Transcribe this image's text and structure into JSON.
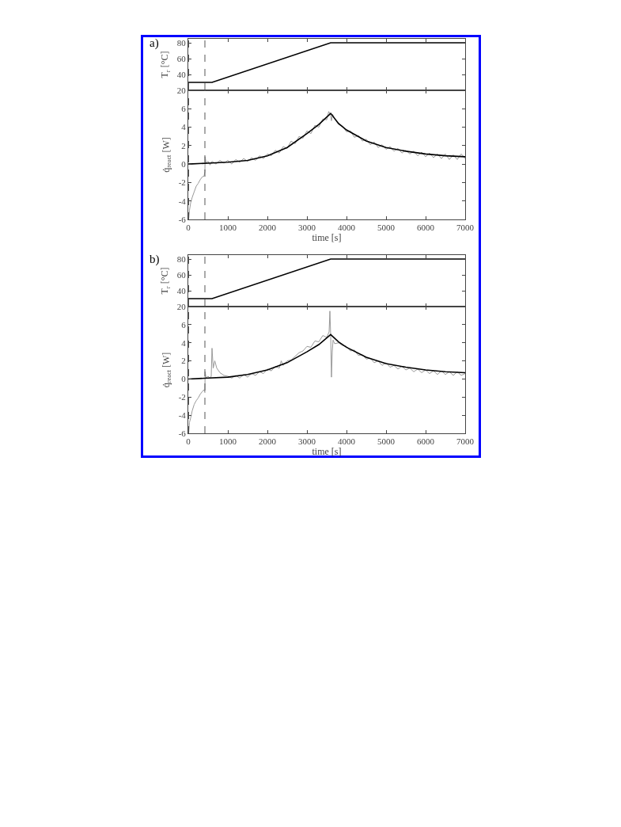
{
  "chart_data": [
    {
      "type": "line",
      "ylabel": "T$_{r}$ [°C]",
      "annotations": [
        "a)"
      ],
      "xlim": [
        0,
        7000
      ],
      "xticks": [
        0,
        1000,
        2000,
        3000,
        4000,
        5000,
        6000,
        7000
      ],
      "ylim": [
        20,
        85
      ],
      "yticks": [
        20,
        40,
        60,
        80
      ],
      "tick_labels": "y",
      "ref_lines": [
        {
          "axis": "x",
          "value": 10,
          "color": "#555555",
          "line_style": "dashed"
        },
        {
          "axis": "x",
          "value": 420,
          "color": "#555555",
          "line_style": "dashed"
        }
      ],
      "series": [
        {
          "color": "#000000",
          "x": [
            0,
            600,
            3600,
            7000
          ],
          "values": [
            30,
            30,
            80,
            80
          ]
        }
      ]
    },
    {
      "type": "line",
      "xlabel": "time [s]",
      "ylabel": "q̇$_{react}$ [W]",
      "xlim": [
        0,
        7000
      ],
      "xticks": [
        0,
        1000,
        2000,
        3000,
        4000,
        5000,
        6000,
        7000
      ],
      "ylim": [
        -6,
        8
      ],
      "yticks": [
        -6,
        -4,
        -2,
        0,
        2,
        4,
        6
      ],
      "ref_lines": [
        {
          "axis": "x",
          "value": 10,
          "color": "#555555",
          "line_style": "dashed"
        },
        {
          "axis": "x",
          "value": 420,
          "color": "#555555",
          "line_style": "dashed"
        }
      ],
      "series": [
        {
          "color": "#999999",
          "x": [
            10,
            30,
            60,
            100,
            150,
            200,
            250,
            300,
            350,
            400,
            420,
            425,
            450,
            500,
            550,
            600,
            700,
            800,
            900,
            1000,
            1100,
            1200,
            1300,
            1400,
            1500,
            1600,
            1700,
            1800,
            1900,
            2000,
            2100,
            2200,
            2300,
            2400,
            2500,
            2600,
            2700,
            2800,
            2900,
            3000,
            3100,
            3200,
            3300,
            3400,
            3500,
            3550,
            3600,
            3620,
            3650,
            3700,
            3800,
            3900,
            4000,
            4100,
            4200,
            4300,
            4400,
            4500,
            4600,
            4700,
            4800,
            4900,
            5000,
            5100,
            5200,
            5300,
            5400,
            5500,
            5600,
            5700,
            5800,
            5900,
            6000,
            6100,
            6200,
            6300,
            6400,
            6500,
            6600,
            6700,
            6800,
            6900,
            7000
          ],
          "values": [
            -6,
            -5.0,
            -4.2,
            -3.6,
            -3.0,
            -2.4,
            -2.1,
            -1.7,
            -1.4,
            -1.3,
            -0.8,
            0.8,
            0.1,
            0.3,
            -0.1,
            0.3,
            0.0,
            0.4,
            0.1,
            0.4,
            0.0,
            0.5,
            0.2,
            0.6,
            0.3,
            0.7,
            0.4,
            0.9,
            0.6,
            1.1,
            0.9,
            1.5,
            1.2,
            1.9,
            1.7,
            2.5,
            2.2,
            3.0,
            2.8,
            3.6,
            3.3,
            4.2,
            4.0,
            4.9,
            4.8,
            5.7,
            5.3,
            4.7,
            5.4,
            4.9,
            4.3,
            4.1,
            3.5,
            3.6,
            2.9,
            3.1,
            2.5,
            2.7,
            2.1,
            2.4,
            1.8,
            2.1,
            1.6,
            1.9,
            1.4,
            1.7,
            1.2,
            1.5,
            1.1,
            1.4,
            0.9,
            1.3,
            0.8,
            1.2,
            0.7,
            1.1,
            0.6,
            1.1,
            0.5,
            1.0,
            0.5,
            1.1,
            0.6
          ]
        },
        {
          "color": "#000000",
          "x": [
            0,
            500,
            1000,
            1500,
            2000,
            2500,
            3000,
            3300,
            3600,
            3800,
            4000,
            4500,
            5000,
            5500,
            6000,
            6500,
            7000
          ],
          "values": [
            0,
            0.1,
            0.2,
            0.4,
            0.9,
            1.8,
            3.3,
            4.3,
            5.5,
            4.4,
            3.7,
            2.5,
            1.8,
            1.4,
            1.1,
            0.9,
            0.8
          ]
        }
      ]
    },
    {
      "type": "line",
      "ylabel": "T$_{r}$ [°C]",
      "annotations": [
        "b)"
      ],
      "xlim": [
        0,
        7000
      ],
      "xticks": [
        0,
        1000,
        2000,
        3000,
        4000,
        5000,
        6000,
        7000
      ],
      "ylim": [
        20,
        85
      ],
      "yticks": [
        20,
        40,
        60,
        80
      ],
      "tick_labels": "y",
      "ref_lines": [
        {
          "axis": "x",
          "value": 10,
          "color": "#555555",
          "line_style": "dashed"
        },
        {
          "axis": "x",
          "value": 420,
          "color": "#555555",
          "line_style": "dashed"
        }
      ],
      "series": [
        {
          "color": "#000000",
          "x": [
            0,
            600,
            3600,
            7000
          ],
          "values": [
            30,
            30,
            80,
            80
          ]
        }
      ]
    },
    {
      "type": "line",
      "xlabel": "time [s]",
      "ylabel": "q̇$_{react}$ [W]",
      "xlim": [
        0,
        7000
      ],
      "xticks": [
        0,
        1000,
        2000,
        3000,
        4000,
        5000,
        6000,
        7000
      ],
      "ylim": [
        -6,
        8
      ],
      "yticks": [
        -6,
        -4,
        -2,
        0,
        2,
        4,
        6
      ],
      "ref_lines": [
        {
          "axis": "x",
          "value": 10,
          "color": "#555555",
          "line_style": "dashed"
        },
        {
          "axis": "x",
          "value": 420,
          "color": "#555555",
          "line_style": "dashed"
        }
      ],
      "series": [
        {
          "color": "#999999",
          "x": [
            10,
            30,
            60,
            100,
            150,
            200,
            250,
            300,
            350,
            400,
            420,
            425,
            450,
            500,
            550,
            580,
            600,
            630,
            670,
            720,
            800,
            900,
            1000,
            1100,
            1200,
            1300,
            1400,
            1500,
            1600,
            1700,
            1800,
            1900,
            2000,
            2100,
            2200,
            2300,
            2350,
            2400,
            2500,
            2600,
            2700,
            2800,
            2900,
            3000,
            3100,
            3200,
            3300,
            3400,
            3500,
            3560,
            3580,
            3600,
            3620,
            3640,
            3660,
            3700,
            3800,
            3900,
            4000,
            4100,
            4200,
            4300,
            4400,
            4500,
            4600,
            4700,
            4800,
            4900,
            5000,
            5100,
            5200,
            5300,
            5400,
            5500,
            5600,
            5700,
            5800,
            5900,
            6000,
            6100,
            6200,
            6300,
            6400,
            6500,
            6600,
            6700,
            6800,
            6900,
            7000
          ],
          "values": [
            -6,
            -4.8,
            -4.3,
            -3.5,
            -2.8,
            -2.4,
            -2.1,
            -1.7,
            -1.4,
            -1.2,
            -1.5,
            0.8,
            0.1,
            0.3,
            0.1,
            0.3,
            3.4,
            1.2,
            2.0,
            1.2,
            0.7,
            0.4,
            0.3,
            0.1,
            0.4,
            0.1,
            0.5,
            0.2,
            0.6,
            0.4,
            0.8,
            0.6,
            1.1,
            0.9,
            1.4,
            1.2,
            2.0,
            1.5,
            2.0,
            2.1,
            2.5,
            2.9,
            3.1,
            3.6,
            3.5,
            4.2,
            4.1,
            4.8,
            4.6,
            5.2,
            7.5,
            4.8,
            0.2,
            3.0,
            4.3,
            3.9,
            4.0,
            3.7,
            3.6,
            3.1,
            3.2,
            2.6,
            2.7,
            2.2,
            2.3,
            1.8,
            2.0,
            1.5,
            1.8,
            1.3,
            1.5,
            1.1,
            1.4,
            1.0,
            1.2,
            0.8,
            1.1,
            0.7,
            1.0,
            0.6,
            0.9,
            0.5,
            0.9,
            0.5,
            0.8,
            0.4,
            0.8,
            0.4,
            0.6
          ]
        },
        {
          "color": "#000000",
          "x": [
            0,
            500,
            1000,
            1500,
            2000,
            2500,
            3000,
            3300,
            3600,
            3800,
            4000,
            4500,
            5000,
            5500,
            6000,
            6500,
            7000
          ],
          "values": [
            0,
            0.1,
            0.2,
            0.5,
            1.0,
            1.8,
            3.0,
            3.8,
            4.9,
            4.1,
            3.5,
            2.4,
            1.7,
            1.3,
            1.0,
            0.8,
            0.7
          ]
        }
      ]
    }
  ]
}
